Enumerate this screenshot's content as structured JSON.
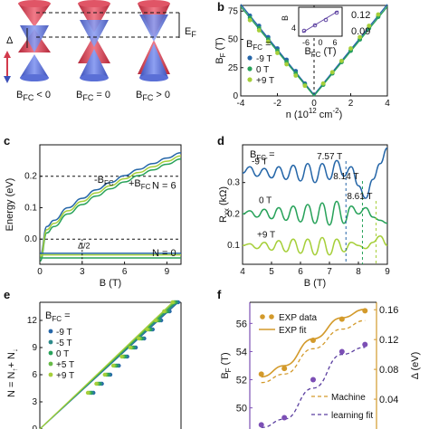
{
  "panel_a": {
    "label": "a",
    "captions": [
      "B FC < 0",
      "B FC = 0",
      "B FC > 0"
    ],
    "caption_parts": [
      {
        "pre": "B",
        "sub": "FC",
        "post": " < 0"
      },
      {
        "pre": "B",
        "sub": "FC",
        "post": " = 0"
      },
      {
        "pre": "B",
        "sub": "FC",
        "post": " > 0"
      }
    ],
    "delta": "Δ",
    "ef": {
      "pre": "E",
      "sub": "F"
    },
    "colors": {
      "red": "#d23a4c",
      "blue": "#5a6fd6"
    }
  },
  "chart_data": [
    {
      "id": "b",
      "type": "scatter",
      "panel_label": "b",
      "xlabel": "n (10",
      "xlabel_sup": "12",
      "xlabel_unit": " cm",
      "xlabel_sup2": "-2",
      "xlabel_end": ")",
      "ylabel": "B",
      "ylabel_sub": "F",
      "ylabel_unit": " (T)",
      "xlim": [
        -4,
        4
      ],
      "ylim": [
        0,
        80
      ],
      "xticks": [
        -4,
        -2,
        0,
        2,
        4
      ],
      "yticks": [
        0,
        25,
        50,
        75
      ],
      "legend_title": "B",
      "legend_title_sub": "FC",
      "legend_title_end": " =",
      "series": [
        {
          "name": "-9 T",
          "color": "#2566a8",
          "x": [
            -3.5,
            -3.0,
            -2.5,
            -2.0,
            -1.5,
            -1.0,
            -0.5,
            0.5,
            1.0,
            1.5,
            2.0,
            2.5,
            3.0,
            3.5
          ],
          "y": [
            71,
            62,
            52,
            42,
            32,
            22,
            11,
            10,
            20,
            30,
            40,
            50,
            60,
            70
          ]
        },
        {
          "name": "0 T",
          "color": "#28a25a",
          "x": [
            -3.5,
            -3.0,
            -2.5,
            -2.0,
            -1.5,
            -1.0,
            -0.5,
            0.5,
            1.0,
            1.5,
            2.0,
            2.5,
            3.0,
            3.5
          ],
          "y": [
            69,
            60,
            50,
            40,
            30,
            20,
            10,
            10,
            20,
            30,
            40,
            50,
            60,
            70
          ]
        },
        {
          "name": "+9 T",
          "color": "#a6cf3a",
          "x": [
            -3.5,
            -3.0,
            -2.5,
            -2.0,
            -1.5,
            -1.0,
            -0.5,
            0.5,
            1.0,
            1.5,
            2.0,
            2.5,
            3.0,
            3.5
          ],
          "y": [
            67,
            58,
            48,
            38,
            28,
            18,
            9,
            11,
            21,
            31,
            42,
            52,
            62,
            72
          ]
        }
      ],
      "fit_lines": [
        {
          "color": "#2566a8",
          "x": [
            -4,
            0,
            4
          ],
          "y": [
            81,
            1,
            81
          ]
        },
        {
          "color": "#28a25a",
          "x": [
            -4,
            0,
            4
          ],
          "y": [
            79,
            0,
            79
          ]
        }
      ],
      "inset": {
        "xlabel": "B",
        "xlabel_sub": "FC",
        "xlabel_unit": " (T)",
        "ylabel": "B",
        "xticks": [
          -6,
          0,
          6
        ],
        "yticks_left": [
          4
        ],
        "yticks_right": [
          0.12,
          0.09
        ],
        "right_color": "#d39a2b",
        "left_color": "#5b3fa0"
      }
    },
    {
      "id": "c",
      "type": "line",
      "panel_label": "c",
      "xlabel": "B (T)",
      "ylabel": "Energy (eV)",
      "xlim": [
        0,
        10
      ],
      "ylim": [
        -0.08,
        0.3
      ],
      "xticks": [
        0,
        3,
        6,
        9
      ],
      "yticks": [
        0.0,
        0.1,
        0.2
      ],
      "yticklabels": [
        "0.0",
        "0.1",
        "0.2"
      ],
      "series": [
        {
          "name": "",
          "color": "#2566a8",
          "x": [
            0.02,
            0.5,
            1,
            2,
            3,
            4,
            5,
            6,
            7,
            8,
            9,
            10
          ],
          "y": [
            -0.05,
            0.0,
            0.018,
            0.053,
            0.08,
            0.103,
            0.124,
            0.143,
            0.161,
            0.178,
            0.194,
            0.209
          ]
        },
        {
          "name": "",
          "color": "#28a25a",
          "x": [
            0.02,
            0.5,
            1,
            2,
            3,
            4,
            5,
            6,
            7,
            8,
            9,
            10
          ],
          "y": [
            -0.07,
            -0.02,
            0.0,
            0.035,
            0.062,
            0.085,
            0.106,
            0.125,
            0.143,
            0.16,
            0.176,
            0.191
          ]
        },
        {
          "name": "",
          "color": "#a6cf3a",
          "x": [
            0.02,
            0.5,
            1,
            2,
            3,
            4,
            5,
            6,
            7,
            8,
            9,
            10
          ],
          "y": [
            -0.06,
            -0.01,
            0.008,
            0.043,
            0.07,
            0.093,
            0.114,
            0.133,
            0.151,
            0.168,
            0.184,
            0.199
          ]
        }
      ],
      "upper_series": [
        {
          "color": "#2566a8",
          "x": [
            0.02,
            0.5,
            1,
            2,
            3,
            4,
            5,
            6,
            7,
            8,
            9,
            10
          ],
          "y": [
            -0.05,
            0.04,
            0.06,
            0.1,
            0.13,
            0.157,
            0.18,
            0.202,
            0.222,
            0.24,
            0.258,
            0.275
          ]
        },
        {
          "color": "#28a25a",
          "x": [
            0.02,
            0.5,
            1,
            2,
            3,
            4,
            5,
            6,
            7,
            8,
            9,
            10
          ],
          "y": [
            -0.07,
            0.02,
            0.04,
            0.08,
            0.11,
            0.137,
            0.16,
            0.182,
            0.202,
            0.22,
            0.238,
            0.255
          ]
        },
        {
          "color": "#a6cf3a",
          "x": [
            0.02,
            0.5,
            1,
            2,
            3,
            4,
            5,
            6,
            7,
            8,
            9,
            10
          ],
          "y": [
            -0.06,
            0.03,
            0.05,
            0.09,
            0.12,
            0.147,
            0.17,
            0.192,
            0.212,
            0.23,
            0.248,
            0.265
          ]
        }
      ],
      "hlines": [
        0.2,
        0.0
      ],
      "n_levels": [
        {
          "color": "#2566a8",
          "y": -0.045
        },
        {
          "color": "#28a25a",
          "y": -0.06
        },
        {
          "color": "#a6cf3a",
          "y": -0.05
        }
      ],
      "vline_x": 3,
      "annotations": {
        "n6": "N = 6",
        "n0": "N = 0",
        "half_delta": "Δ/2",
        "minus_bfc": "-B",
        "plus_bfc": "+B",
        "sub": "FC"
      }
    },
    {
      "id": "d",
      "type": "line",
      "panel_label": "d",
      "xlabel": "B (T)",
      "ylabel": "R",
      "ylabel_sub": "xx",
      "ylabel_unit": " (kΩ)",
      "xlim": [
        4,
        9
      ],
      "ylim": [
        0.04,
        0.42
      ],
      "xticks": [
        4,
        5,
        6,
        7,
        8,
        9
      ],
      "yticks": [
        0.1,
        0.2,
        0.3
      ],
      "legend_title": "B",
      "legend_title_sub": "FC",
      "legend_title_end": " =",
      "series": [
        {
          "name": "-9 T",
          "color": "#2566a8",
          "base": 0.33,
          "amp": 0.02,
          "period": 0.55,
          "x": [
            4,
            4.25,
            4.5,
            4.75,
            5,
            5.25,
            5.5,
            5.75,
            6,
            6.25,
            6.5,
            6.75,
            7,
            7.25,
            7.5,
            7.75,
            8,
            8.25,
            8.5,
            8.75,
            9
          ],
          "y": [
            0.33,
            0.35,
            0.32,
            0.345,
            0.315,
            0.35,
            0.31,
            0.355,
            0.305,
            0.36,
            0.3,
            0.36,
            0.31,
            0.37,
            0.32,
            0.35,
            0.29,
            0.25,
            0.31,
            0.36,
            0.41
          ]
        },
        {
          "name": "0 T",
          "color": "#28a25a",
          "x": [
            4,
            4.25,
            4.5,
            4.75,
            5,
            5.25,
            5.5,
            5.75,
            6,
            6.25,
            6.5,
            6.75,
            7,
            7.25,
            7.5,
            7.75,
            8,
            8.25,
            8.5,
            8.75,
            9
          ],
          "y": [
            0.2,
            0.21,
            0.19,
            0.215,
            0.185,
            0.22,
            0.18,
            0.225,
            0.175,
            0.23,
            0.17,
            0.235,
            0.165,
            0.24,
            0.17,
            0.225,
            0.2,
            0.22,
            0.19,
            0.18,
            0.17
          ]
        },
        {
          "name": "+9 T",
          "color": "#a6cf3a",
          "x": [
            4,
            4.25,
            4.5,
            4.75,
            5,
            5.25,
            5.5,
            5.75,
            6,
            6.25,
            6.5,
            6.75,
            7,
            7.25,
            7.5,
            7.75,
            8,
            8.25,
            8.5,
            8.75,
            9
          ],
          "y": [
            0.1,
            0.105,
            0.09,
            0.11,
            0.085,
            0.115,
            0.08,
            0.12,
            0.075,
            0.12,
            0.07,
            0.125,
            0.07,
            0.12,
            0.08,
            0.11,
            0.1,
            0.09,
            0.11,
            0.13,
            0.1
          ]
        }
      ],
      "markers": [
        {
          "label": "7.57 T",
          "x": 7.57,
          "color": "#2566a8"
        },
        {
          "label": "8.14 T",
          "x": 8.14,
          "color": "#28a25a"
        },
        {
          "label": "8.61 T",
          "x": 8.61,
          "color": "#a6cf3a"
        }
      ]
    },
    {
      "id": "e",
      "type": "scatter",
      "panel_label": "e",
      "xlabel": "",
      "ylabel": "N = N",
      "ylabel_sub1": "↑",
      "ylabel_mid": "+ N",
      "ylabel_sub2": "↓",
      "xlim": [
        0,
        10
      ],
      "ylim": [
        0,
        14
      ],
      "yticks": [
        0,
        3,
        6,
        9,
        12
      ],
      "legend_title": "B",
      "legend_title_sub": "FC",
      "legend_title_end": " =",
      "series": [
        {
          "name": "-9 T",
          "color": "#2566a8",
          "x": [
            3.8,
            4.4,
            5.0,
            5.6,
            6.2,
            6.8,
            7.4,
            8.0,
            8.6,
            9.2,
            9.8
          ],
          "y": [
            4,
            5,
            6,
            7,
            8,
            9,
            10,
            11,
            12,
            13,
            14
          ]
        },
        {
          "name": "-5 T",
          "color": "#2d8a8a",
          "x": [
            3.7,
            4.3,
            4.9,
            5.5,
            6.1,
            6.7,
            7.3,
            7.9,
            8.5,
            9.1,
            9.7
          ],
          "y": [
            4,
            5,
            6,
            7,
            8,
            9,
            10,
            11,
            12,
            13,
            14
          ]
        },
        {
          "name": "0 T",
          "color": "#28a25a",
          "x": [
            3.6,
            4.2,
            4.8,
            5.4,
            6.0,
            6.6,
            7.2,
            7.8,
            8.4,
            9.0,
            9.6
          ],
          "y": [
            4,
            5,
            6,
            7,
            8,
            9,
            10,
            11,
            12,
            13,
            14
          ]
        },
        {
          "name": "+5 T",
          "color": "#67bb48",
          "x": [
            3.5,
            4.1,
            4.7,
            5.3,
            5.9,
            6.5,
            7.1,
            7.7,
            8.3,
            8.9,
            9.5
          ],
          "y": [
            4,
            5,
            6,
            7,
            8,
            9,
            10,
            11,
            12,
            13,
            14
          ]
        },
        {
          "name": "+9 T",
          "color": "#a6cf3a",
          "x": [
            3.4,
            4.0,
            4.6,
            5.2,
            5.8,
            6.4,
            7.0,
            7.6,
            8.2,
            8.8,
            9.4
          ],
          "y": [
            4,
            5,
            6,
            7,
            8,
            9,
            10,
            11,
            12,
            13,
            14
          ]
        }
      ]
    },
    {
      "id": "f",
      "type": "scatter",
      "panel_label": "f",
      "ylabel": "B",
      "ylabel_sub": "F",
      "ylabel_unit": " (T)",
      "ylabel_right": "Δ (eV)",
      "ylim": [
        48.5,
        57.5
      ],
      "yticks": [
        50,
        52,
        54,
        56
      ],
      "ylim_right": [
        0.0,
        0.17
      ],
      "yticks_right": [
        0.04,
        0.08,
        0.12,
        0.16
      ],
      "yticklabels_right": [
        "0.04",
        "0.08",
        "0.12",
        "0.16"
      ],
      "left_color": "#7c4fb5",
      "right_color": "#d39a2b",
      "legend": [
        {
          "label": "EXP data",
          "kind": "dot",
          "color": "#d39a2b"
        },
        {
          "label": "EXP fit",
          "kind": "line",
          "color": "#d39a2b"
        }
      ],
      "legend2": [
        {
          "label": "Machine",
          "kind": "dash",
          "color": "#d39a2b"
        },
        {
          "label": "learning fit",
          "kind": "dash",
          "color": "#5b3fa0"
        }
      ],
      "x": [
        -9,
        -5,
        0,
        5,
        9
      ],
      "exp_data": [
        52.4,
        52.8,
        54.8,
        56.3,
        56.9
      ],
      "exp_fit": [
        52.2,
        53.0,
        54.9,
        56.4,
        57.0
      ],
      "ml_orange": [
        51.8,
        52.4,
        54.2,
        55.6,
        56.2
      ],
      "purple_data": [
        48.8,
        49.3,
        52.0,
        54.0,
        54.5
      ],
      "ml_purple": [
        48.6,
        49.2,
        51.4,
        53.8,
        54.3
      ]
    }
  ]
}
